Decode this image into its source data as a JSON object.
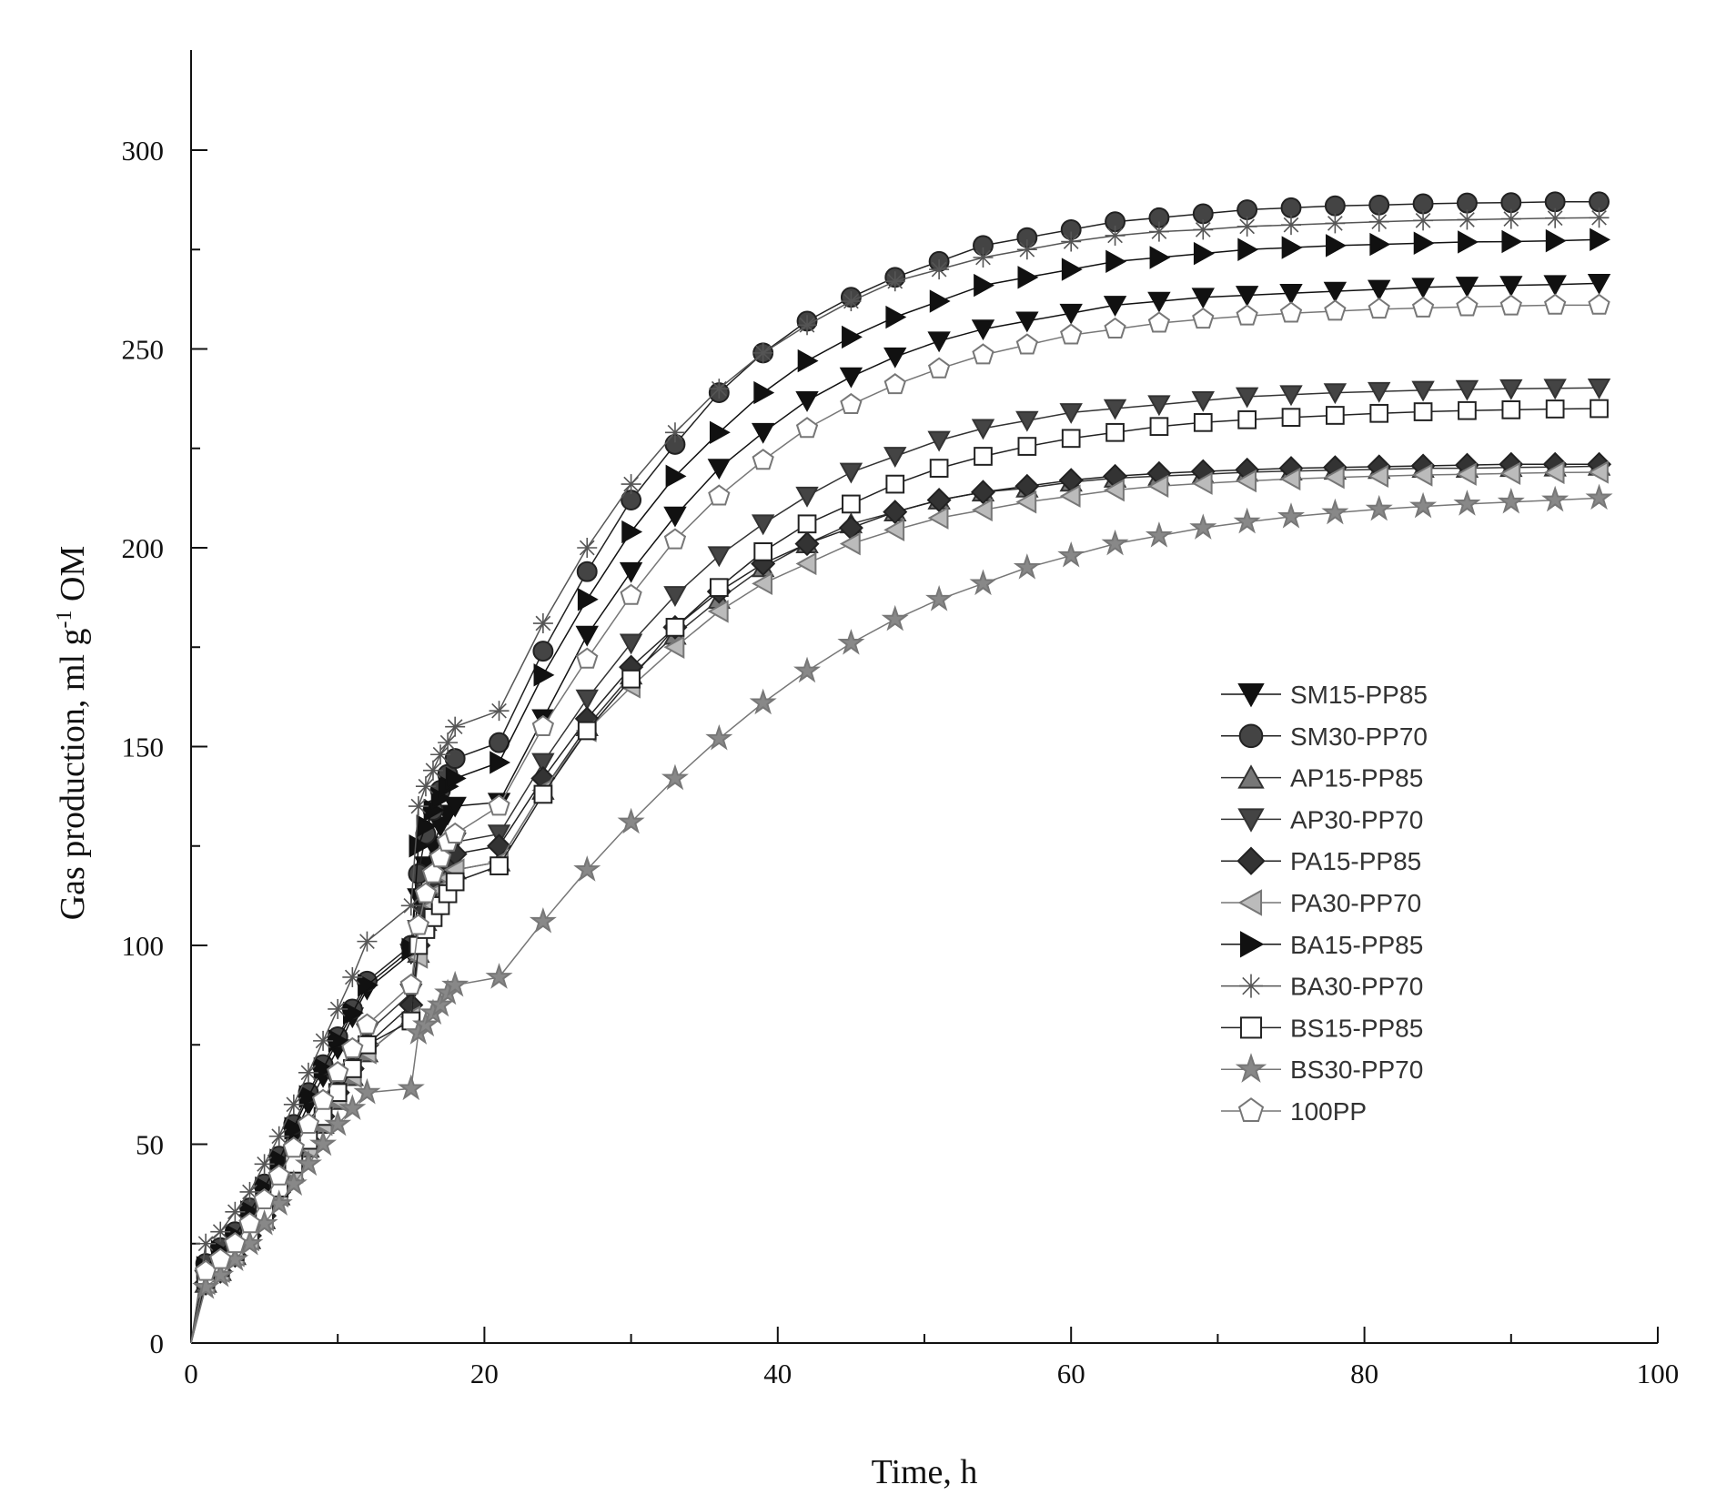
{
  "chart_data": {
    "type": "line",
    "title": "",
    "xlabel": "Time, h",
    "ylabel_parts": {
      "main": "Gas production, ml g",
      "sup": "-1",
      "tail": " OM"
    },
    "xlim": [
      0,
      100
    ],
    "ylim": [
      0,
      300
    ],
    "xticks": [
      "0",
      "20",
      "40",
      "60",
      "80",
      "100"
    ],
    "yticks": [
      "0",
      "50",
      "100",
      "150",
      "200",
      "250",
      "300"
    ],
    "grid": false,
    "legend_position": "right-middle",
    "x": [
      0,
      1,
      2,
      3,
      4,
      5,
      6,
      7,
      8,
      9,
      10,
      11,
      12,
      15,
      15.5,
      16,
      16.5,
      17,
      17.5,
      18,
      21,
      24,
      27,
      30,
      33,
      36,
      39,
      42,
      45,
      48,
      51,
      54,
      57,
      60,
      63,
      66,
      69,
      72,
      75,
      78,
      81,
      84,
      87,
      90,
      93,
      96
    ],
    "series": [
      {
        "name": "SM15-PP85",
        "marker": "triangle-down",
        "color": "#111111",
        "fill": "#111111",
        "values": [
          0,
          16,
          20,
          25,
          30,
          37,
          45,
          52,
          60,
          67,
          74,
          82,
          89,
          98,
          112,
          120,
          125,
          130,
          133,
          135,
          136,
          157,
          178,
          194,
          208,
          220,
          229,
          237,
          243,
          248,
          252,
          255,
          257,
          259,
          261,
          262,
          263,
          263.5,
          264,
          264.5,
          265,
          265.5,
          265.8,
          266,
          266.2,
          266.5
        ]
      },
      {
        "name": "SM30-PP70",
        "marker": "circle",
        "color": "#222222",
        "fill": "#444444",
        "values": [
          0,
          20,
          24,
          28,
          34,
          40,
          47,
          55,
          63,
          70,
          77,
          84,
          91,
          100,
          118,
          128,
          134,
          139,
          143,
          147,
          151,
          174,
          194,
          212,
          226,
          239,
          249,
          257,
          263,
          268,
          272,
          276,
          278,
          280,
          282,
          283,
          284,
          285,
          285.5,
          286,
          286.2,
          286.5,
          286.7,
          286.8,
          287,
          287
        ]
      },
      {
        "name": "AP15-PP85",
        "marker": "triangle-up",
        "color": "#333333",
        "fill": "#777777",
        "values": [
          0,
          15,
          18,
          22,
          26,
          31,
          37,
          43,
          49,
          55,
          61,
          67,
          73,
          82,
          98,
          106,
          110,
          114,
          117,
          119,
          121,
          139,
          155,
          168,
          178,
          187,
          195,
          201,
          206,
          209,
          212,
          214,
          215,
          216.5,
          217.5,
          218,
          218.5,
          219,
          219.3,
          219.5,
          219.7,
          220,
          220,
          220.2,
          220.3,
          220.5
        ]
      },
      {
        "name": "AP30-PP70",
        "marker": "triangle-down",
        "color": "#333333",
        "fill": "#444444",
        "values": [
          0,
          16,
          19,
          23,
          28,
          34,
          40,
          46,
          53,
          59,
          65,
          72,
          78,
          88,
          104,
          113,
          117,
          121,
          124,
          126,
          128,
          146,
          162,
          176,
          188,
          198,
          206,
          213,
          219,
          223,
          227,
          230,
          232,
          234,
          235,
          236,
          237,
          238,
          238.5,
          239,
          239.3,
          239.6,
          239.8,
          240,
          240.1,
          240.2
        ]
      },
      {
        "name": "PA15-PP85",
        "marker": "diamond",
        "color": "#222222",
        "fill": "#333333",
        "values": [
          0,
          15,
          18,
          22,
          27,
          32,
          38,
          45,
          51,
          57,
          63,
          69,
          75,
          85,
          100,
          109,
          114,
          118,
          121,
          123,
          125,
          142,
          157,
          170,
          180,
          189,
          196,
          201,
          205,
          209,
          212,
          214,
          215.5,
          217,
          218,
          218.7,
          219.2,
          219.6,
          220,
          220.2,
          220.4,
          220.6,
          220.8,
          221,
          221,
          221
        ]
      },
      {
        "name": "PA30-PP70",
        "marker": "triangle-left",
        "color": "#777777",
        "fill": "#bbbbbb",
        "values": [
          0,
          15,
          18,
          22,
          26,
          31,
          37,
          43,
          49,
          55,
          61,
          67,
          73,
          82,
          97,
          105,
          110,
          114,
          117,
          119,
          121,
          139,
          154,
          165,
          175,
          184,
          191,
          196,
          201,
          204.5,
          207.5,
          209.5,
          211.5,
          213,
          214.5,
          215.5,
          216.2,
          216.8,
          217.3,
          217.7,
          218,
          218.3,
          218.5,
          218.7,
          218.9,
          219
        ]
      },
      {
        "name": "BA15-PP85",
        "marker": "triangle-right",
        "color": "#111111",
        "fill": "#111111",
        "values": [
          0,
          19,
          23,
          27,
          33,
          39,
          46,
          54,
          62,
          69,
          76,
          83,
          90,
          99,
          125,
          130,
          134,
          137,
          140,
          142,
          146,
          168,
          187,
          204,
          218,
          229,
          239,
          247,
          253,
          258,
          262,
          266,
          268,
          270,
          272,
          273,
          274,
          275,
          275.5,
          276,
          276.3,
          276.6,
          276.9,
          277,
          277.2,
          277.5
        ]
      },
      {
        "name": "BA30-PP70",
        "marker": "asterisk",
        "color": "#555555",
        "fill": "none",
        "values": [
          0,
          25,
          28,
          33,
          38,
          45,
          52,
          60,
          68,
          76,
          84,
          92,
          101,
          110,
          135,
          140,
          144,
          148,
          151,
          155,
          159,
          181,
          200,
          216,
          229,
          240,
          249,
          256,
          262,
          267,
          270,
          273,
          275,
          277,
          278.5,
          279.5,
          280,
          280.8,
          281.2,
          281.6,
          282,
          282.3,
          282.5,
          282.7,
          282.9,
          283
        ]
      },
      {
        "name": "BS15-PP85",
        "marker": "square-open",
        "color": "#222222",
        "fill": "#ffffff",
        "values": [
          0,
          16,
          19,
          23,
          28,
          33,
          39,
          45,
          51,
          57,
          63,
          69,
          75,
          81,
          100,
          104,
          107,
          110,
          113,
          116,
          120,
          138,
          154,
          167,
          180,
          190,
          199,
          206,
          211,
          216,
          220,
          223,
          225.5,
          227.5,
          229,
          230.5,
          231.5,
          232.2,
          232.8,
          233.3,
          233.8,
          234.2,
          234.5,
          234.7,
          234.9,
          235
        ]
      },
      {
        "name": "BS30-PP70",
        "marker": "star",
        "color": "#777777",
        "fill": "#888888",
        "values": [
          0,
          14,
          17,
          21,
          25,
          30,
          35,
          40,
          45,
          50,
          55,
          59,
          63,
          64,
          78,
          80,
          83,
          85,
          88,
          90,
          92,
          106,
          119,
          131,
          142,
          152,
          161,
          169,
          176,
          182,
          187,
          191,
          195,
          198,
          201,
          203,
          205,
          206.5,
          207.8,
          208.8,
          209.7,
          210.4,
          211,
          211.5,
          212,
          212.5
        ]
      },
      {
        "name": "100PP",
        "marker": "pentagon-open",
        "color": "#777777",
        "fill": "#ffffff",
        "values": [
          0,
          18,
          21,
          25,
          30,
          36,
          42,
          49,
          55,
          61,
          68,
          74,
          80,
          90,
          105,
          113,
          118,
          122,
          126,
          128,
          135,
          155,
          172,
          188,
          202,
          213,
          222,
          230,
          236,
          241,
          245,
          248.5,
          251,
          253.5,
          255,
          256.5,
          257.5,
          258.3,
          259,
          259.5,
          260,
          260.3,
          260.6,
          260.8,
          261,
          261
        ]
      }
    ]
  }
}
